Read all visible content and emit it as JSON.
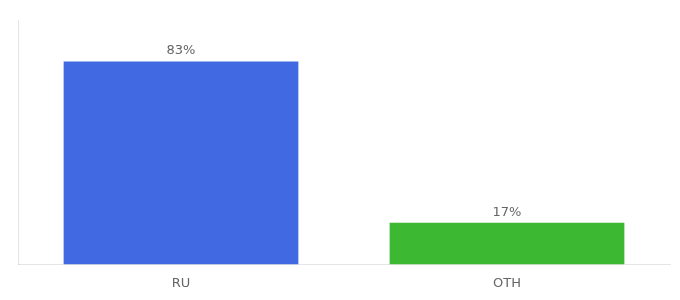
{
  "chart_data": {
    "type": "bar",
    "categories": [
      "RU",
      "OTH"
    ],
    "values": [
      83,
      17
    ],
    "value_labels": [
      "83%",
      "17%"
    ],
    "colors": [
      "#4169e1",
      "#3cb832"
    ],
    "ylim": [
      0,
      100
    ],
    "grid": false,
    "data_labels": true,
    "tick_labels": "x"
  }
}
